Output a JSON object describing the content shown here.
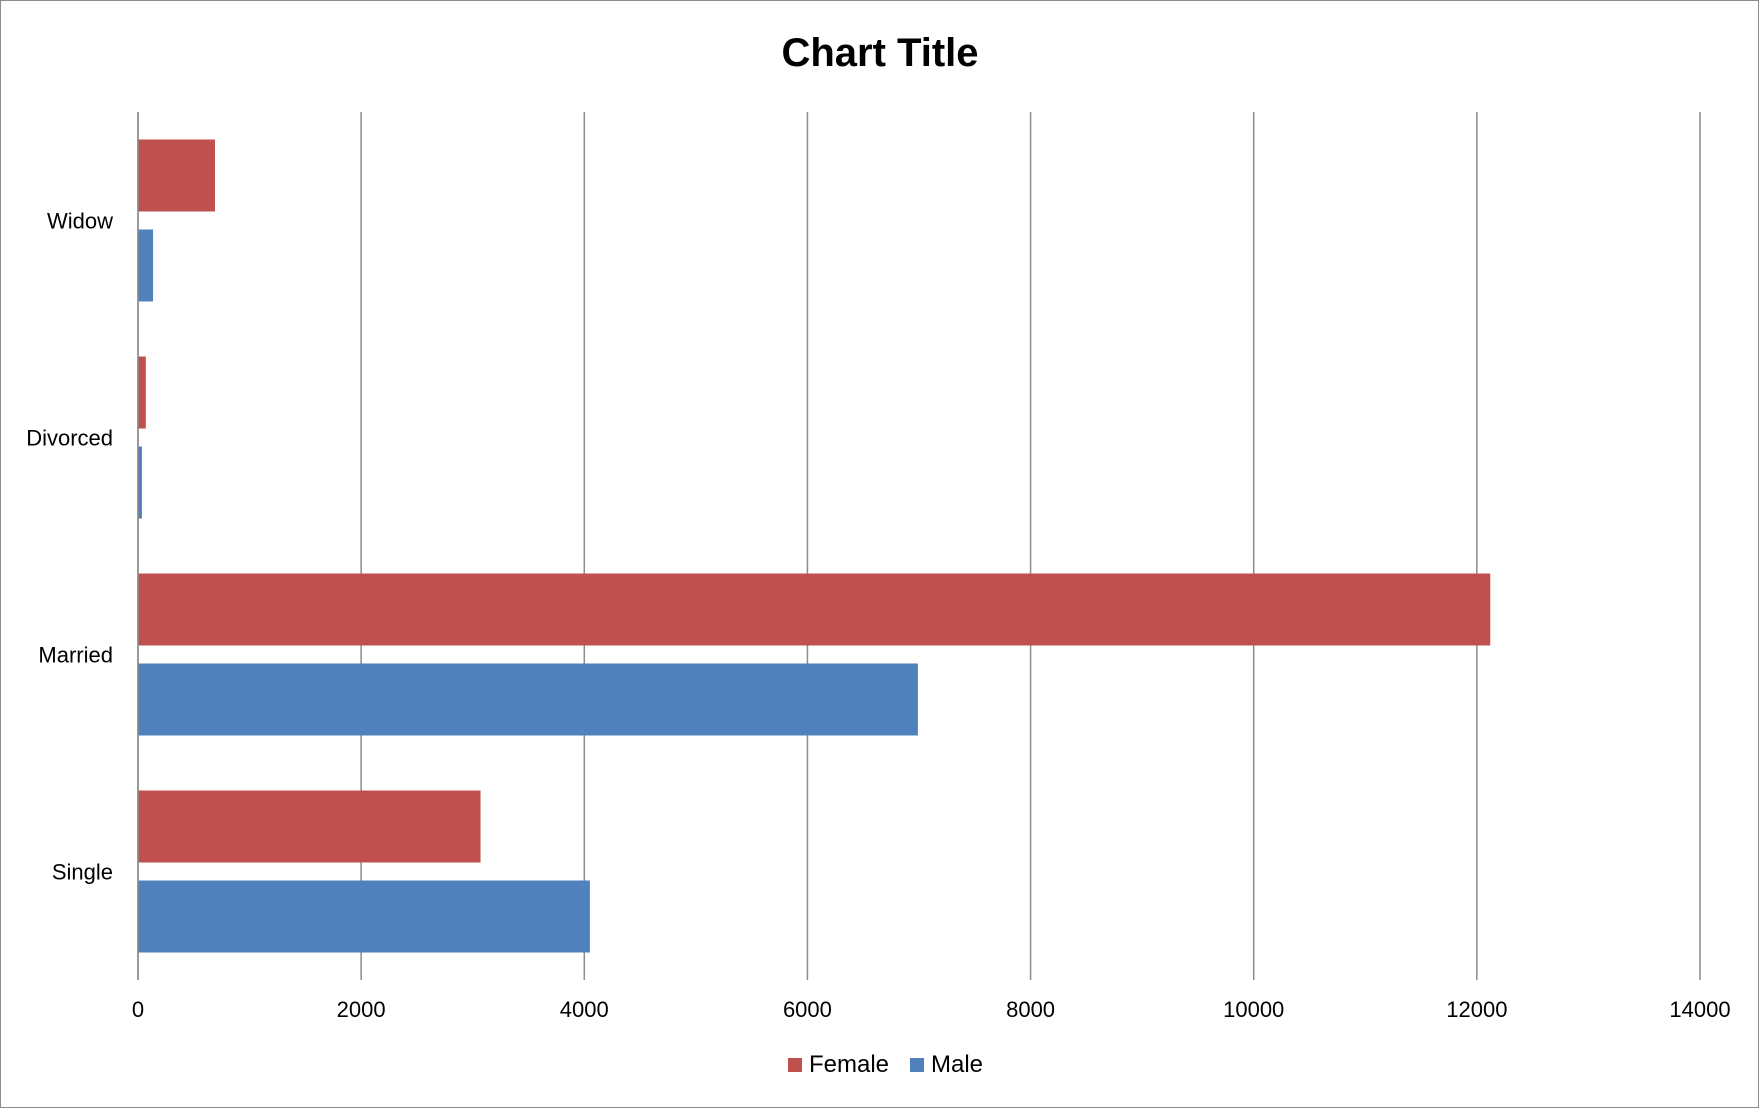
{
  "chart_data": {
    "type": "bar",
    "orientation": "horizontal",
    "title": "Chart Title",
    "xlabel": "",
    "ylabel": "",
    "categories": [
      "Single",
      "Married",
      "Divorced",
      "Widow"
    ],
    "series": [
      {
        "name": "Female",
        "color": "#c0504d",
        "values": [
          3070,
          12120,
          70,
          690
        ]
      },
      {
        "name": "Male",
        "color": "#4f81bd",
        "values": [
          4050,
          6990,
          35,
          135
        ]
      }
    ],
    "xlim": [
      0,
      14000
    ],
    "xticks": [
      "0",
      "2000",
      "4000",
      "6000",
      "8000",
      "10000",
      "12000",
      "14000"
    ],
    "grid": true,
    "legend_position": "bottom"
  }
}
